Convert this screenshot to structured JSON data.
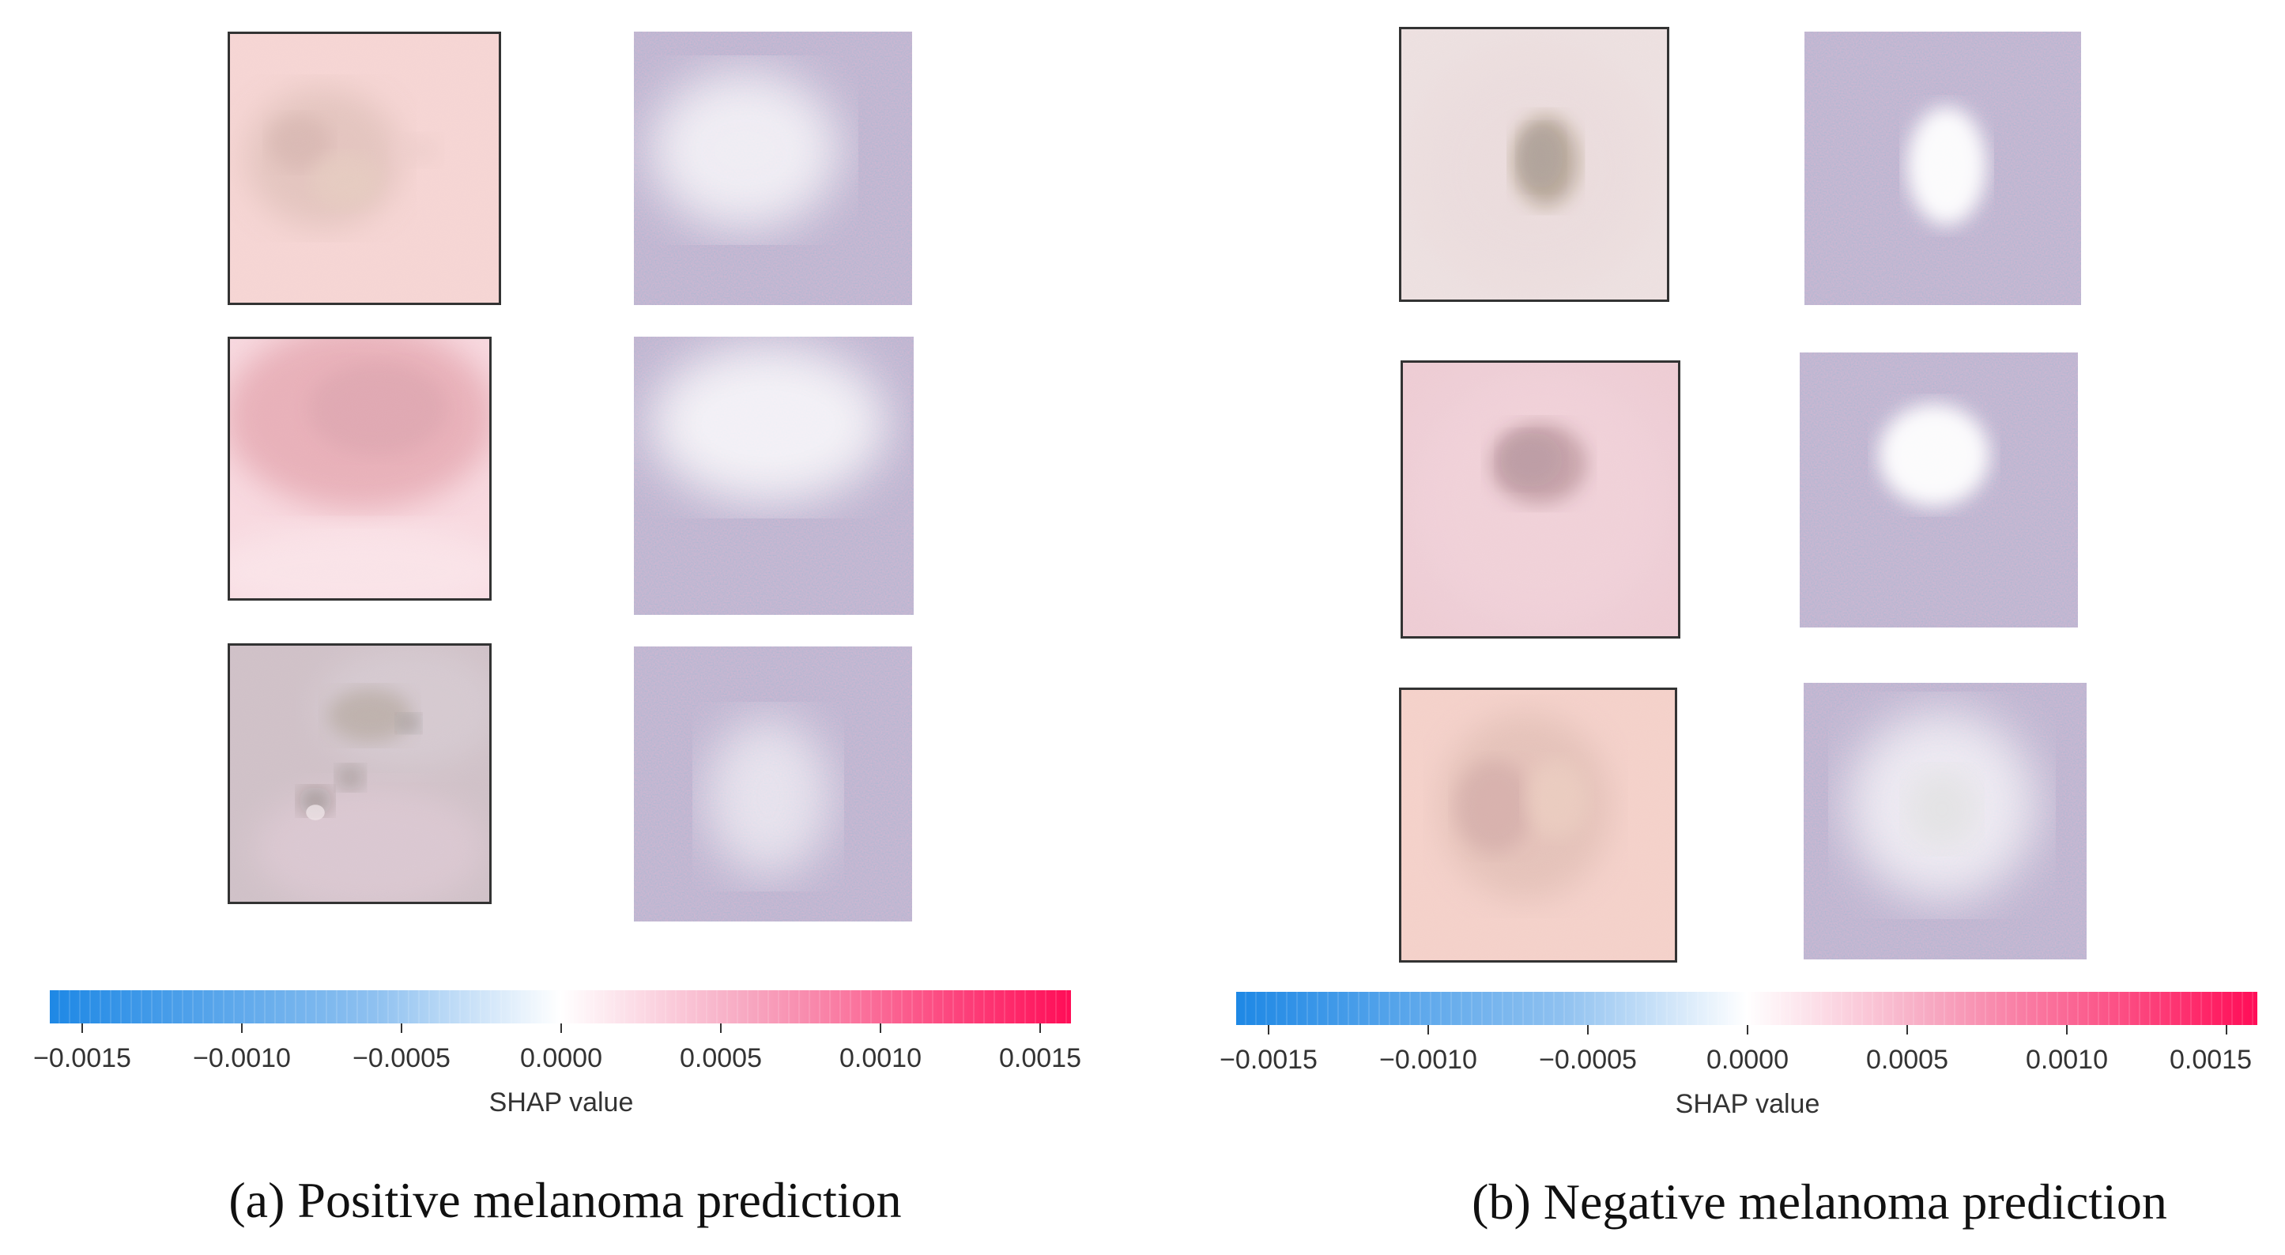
{
  "colors": {
    "negative": "#1e88e5",
    "zero": "#ffffff",
    "positive": "#ff0d57"
  },
  "colorbar": {
    "label": "SHAP value",
    "ticks": [
      "−0.0015",
      "−0.0010",
      "−0.0005",
      "0.0000",
      "0.0005",
      "0.0010",
      "0.0015"
    ]
  },
  "panels": [
    {
      "caption": "(a) Positive melanoma prediction",
      "rows": 3
    },
    {
      "caption": "(b) Negative melanoma prediction",
      "rows": 3
    }
  ]
}
